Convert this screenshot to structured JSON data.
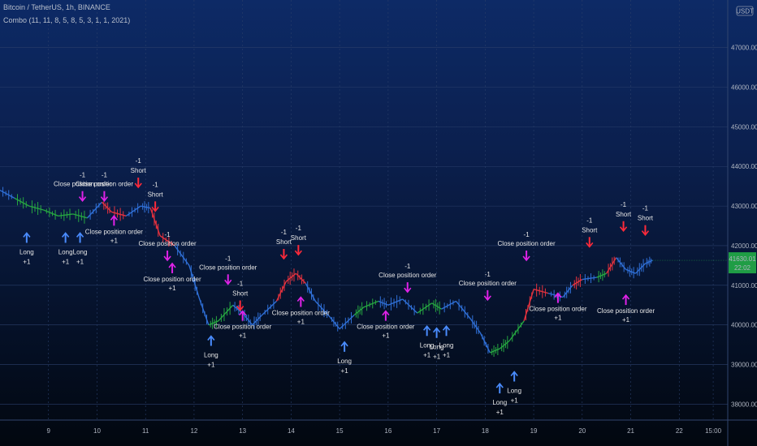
{
  "header": {
    "symbol_line": "Bitcoin / TetherUS, 1h, BINANCE",
    "indicator_line": "Combo (11, 11, 8, 5, 8, 5, 3, 1, 1, 2021)"
  },
  "currency_badge": "USDT",
  "colors": {
    "up": "#26a641",
    "down": "#e5323e",
    "neutral": "#2f6fd6",
    "long_arrow": "#4a8cff",
    "short_arrow": "#ff2a3a",
    "close_arrow": "#e022e8",
    "price_tag": "#1f9d45",
    "grid": "#2a3f6a"
  },
  "chart_data": {
    "type": "line",
    "ylim": [
      37600,
      48200
    ],
    "xlim": [
      8.0,
      23.0
    ],
    "y_ticks": [
      "38000.00",
      "39000.00",
      "40000.00",
      "41000.00",
      "42000.00",
      "43000.00",
      "44000.00",
      "45000.00",
      "46000.00",
      "47000.00"
    ],
    "x_ticks": [
      {
        "x": 9,
        "label": "9"
      },
      {
        "x": 10,
        "label": "10"
      },
      {
        "x": 11,
        "label": "11"
      },
      {
        "x": 12,
        "label": "12"
      },
      {
        "x": 13,
        "label": "13"
      },
      {
        "x": 14,
        "label": "14"
      },
      {
        "x": 15,
        "label": "15"
      },
      {
        "x": 16,
        "label": "16"
      },
      {
        "x": 17,
        "label": "17"
      },
      {
        "x": 18,
        "label": "18"
      },
      {
        "x": 19,
        "label": "19"
      },
      {
        "x": 20,
        "label": "20"
      },
      {
        "x": 21,
        "label": "21"
      },
      {
        "x": 22,
        "label": "22"
      },
      {
        "x": 22.7,
        "label": "15:00"
      }
    ],
    "last_price": "41630.01",
    "last_price_sub": "22:02",
    "price_series": [
      [
        8.0,
        43400,
        "n"
      ],
      [
        8.3,
        43200,
        "n"
      ],
      [
        8.6,
        43000,
        "u"
      ],
      [
        8.9,
        42900,
        "u"
      ],
      [
        9.2,
        42750,
        "u"
      ],
      [
        9.5,
        42800,
        "u"
      ],
      [
        9.8,
        42700,
        "u"
      ],
      [
        10.1,
        43100,
        "n"
      ],
      [
        10.3,
        42850,
        "d"
      ],
      [
        10.6,
        42750,
        "d"
      ],
      [
        10.9,
        43000,
        "n"
      ],
      [
        11.1,
        42950,
        "n"
      ],
      [
        11.3,
        42250,
        "d"
      ],
      [
        11.6,
        42000,
        "d"
      ],
      [
        11.9,
        41500,
        "n"
      ],
      [
        12.1,
        40700,
        "n"
      ],
      [
        12.3,
        40000,
        "n"
      ],
      [
        12.5,
        40100,
        "u"
      ],
      [
        12.8,
        40500,
        "u"
      ],
      [
        13.0,
        40300,
        "n"
      ],
      [
        13.2,
        40000,
        "n"
      ],
      [
        13.4,
        40250,
        "n"
      ],
      [
        13.7,
        40600,
        "n"
      ],
      [
        13.9,
        41100,
        "d"
      ],
      [
        14.1,
        41300,
        "d"
      ],
      [
        14.3,
        41050,
        "d"
      ],
      [
        14.5,
        40600,
        "n"
      ],
      [
        14.8,
        40200,
        "n"
      ],
      [
        15.0,
        39900,
        "n"
      ],
      [
        15.3,
        40250,
        "n"
      ],
      [
        15.5,
        40450,
        "u"
      ],
      [
        15.8,
        40600,
        "u"
      ],
      [
        16.0,
        40500,
        "n"
      ],
      [
        16.3,
        40650,
        "n"
      ],
      [
        16.6,
        40300,
        "n"
      ],
      [
        16.9,
        40550,
        "u"
      ],
      [
        17.1,
        40400,
        "u"
      ],
      [
        17.4,
        40600,
        "n"
      ],
      [
        17.7,
        40150,
        "n"
      ],
      [
        17.9,
        39800,
        "n"
      ],
      [
        18.1,
        39300,
        "n"
      ],
      [
        18.3,
        39400,
        "u"
      ],
      [
        18.5,
        39600,
        "u"
      ],
      [
        18.8,
        40100,
        "u"
      ],
      [
        19.0,
        40900,
        "d"
      ],
      [
        19.3,
        40800,
        "d"
      ],
      [
        19.6,
        40700,
        "n"
      ],
      [
        19.8,
        41000,
        "n"
      ],
      [
        20.0,
        41150,
        "d"
      ],
      [
        20.3,
        41200,
        "n"
      ],
      [
        20.5,
        41300,
        "u"
      ],
      [
        20.7,
        41700,
        "d"
      ],
      [
        20.9,
        41400,
        "n"
      ],
      [
        21.1,
        41300,
        "n"
      ],
      [
        21.3,
        41550,
        "n"
      ],
      [
        21.45,
        41630,
        "n"
      ]
    ],
    "signals": [
      {
        "x": 8.55,
        "y": 42400,
        "type": "long",
        "label": "Long",
        "value": "+1"
      },
      {
        "x": 9.35,
        "y": 42400,
        "type": "long",
        "label": "Long",
        "value": "+1"
      },
      {
        "x": 9.65,
        "y": 42400,
        "type": "long",
        "label": "Long",
        "value": "+1"
      },
      {
        "x": 12.35,
        "y": 39800,
        "type": "long",
        "label": "Long",
        "value": "+1"
      },
      {
        "x": 15.1,
        "y": 39650,
        "type": "long",
        "label": "Long",
        "value": "+1"
      },
      {
        "x": 16.8,
        "y": 40050,
        "type": "long",
        "label": "Long",
        "value": "+1"
      },
      {
        "x": 17.0,
        "y": 40000,
        "type": "long",
        "label": "Long",
        "value": "+1"
      },
      {
        "x": 17.2,
        "y": 40050,
        "type": "long",
        "label": "Long",
        "value": "+1"
      },
      {
        "x": 18.3,
        "y": 38600,
        "type": "long",
        "label": "Long",
        "value": "+1"
      },
      {
        "x": 18.6,
        "y": 38900,
        "type": "long",
        "label": "Long",
        "value": "+1"
      },
      {
        "x": 10.85,
        "y": 43800,
        "type": "short",
        "label": "Short",
        "value": "-1"
      },
      {
        "x": 11.2,
        "y": 43200,
        "type": "short",
        "label": "Short",
        "value": "-1"
      },
      {
        "x": 12.95,
        "y": 40700,
        "type": "short",
        "label": "Short",
        "value": "-1"
      },
      {
        "x": 13.85,
        "y": 42000,
        "type": "short",
        "label": "Short",
        "value": "-1"
      },
      {
        "x": 14.15,
        "y": 42100,
        "type": "short",
        "label": "Short",
        "value": "-1"
      },
      {
        "x": 20.15,
        "y": 42300,
        "type": "short",
        "label": "Short",
        "value": "-1"
      },
      {
        "x": 20.85,
        "y": 42700,
        "type": "short",
        "label": "Short",
        "value": "-1"
      },
      {
        "x": 21.3,
        "y": 42600,
        "type": "short",
        "label": "Short",
        "value": "-1"
      },
      {
        "x": 9.7,
        "y": 43500,
        "type": "close",
        "label": "Close position order",
        "value": "-1"
      },
      {
        "x": 10.15,
        "y": 43500,
        "type": "close",
        "label": "Close position order",
        "value": "-1"
      },
      {
        "x": 10.35,
        "y": 42300,
        "type": "close",
        "label": "Close position order",
        "value": "+1"
      },
      {
        "x": 11.45,
        "y": 42000,
        "type": "close",
        "label": "Close position order",
        "value": "-1"
      },
      {
        "x": 11.55,
        "y": 41100,
        "type": "close",
        "label": "Close position order",
        "value": "+1"
      },
      {
        "x": 12.7,
        "y": 41400,
        "type": "close",
        "label": "Close position order",
        "value": "-1"
      },
      {
        "x": 13.0,
        "y": 39900,
        "type": "close",
        "label": "Close position order",
        "value": "+1"
      },
      {
        "x": 14.2,
        "y": 40250,
        "type": "close",
        "label": "Close position order",
        "value": "+1"
      },
      {
        "x": 15.95,
        "y": 39900,
        "type": "close",
        "label": "Close position order",
        "value": "+1"
      },
      {
        "x": 16.4,
        "y": 41200,
        "type": "close",
        "label": "Close position order",
        "value": "-1"
      },
      {
        "x": 18.05,
        "y": 41000,
        "type": "close",
        "label": "Close position order",
        "value": "-1"
      },
      {
        "x": 18.85,
        "y": 42000,
        "type": "close",
        "label": "Close position order",
        "value": "-1"
      },
      {
        "x": 19.5,
        "y": 40350,
        "type": "close",
        "label": "Close position order",
        "value": "+1"
      },
      {
        "x": 20.9,
        "y": 40300,
        "type": "close",
        "label": "Close position order",
        "value": "+1"
      }
    ],
    "grid": true,
    "legend": "none"
  }
}
